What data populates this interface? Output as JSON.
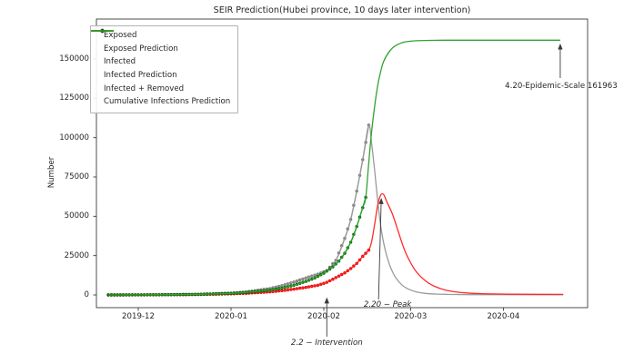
{
  "chart_data": {
    "type": "line",
    "title": "SEIR Prediction(Hubei province, 10 days later intervention)",
    "xlabel": "",
    "ylabel": "Number",
    "background": "#ffffff",
    "grid": false,
    "x_axis": {
      "kind": "date",
      "epoch": "2019-12-01",
      "range_days": [
        -14,
        150
      ],
      "ticks": [
        {
          "label": "2019-12",
          "day": 0
        },
        {
          "label": "2020-01",
          "day": 31
        },
        {
          "label": "2020-02",
          "day": 62
        },
        {
          "label": "2020-03",
          "day": 91
        },
        {
          "label": "2020-04",
          "day": 122
        }
      ]
    },
    "y_axis": {
      "tick_values": [
        0,
        25000,
        50000,
        75000,
        100000,
        125000,
        150000
      ],
      "ylim": [
        -8000,
        175000
      ]
    },
    "legend": {
      "position": "upper left"
    },
    "series": [
      {
        "name": "Exposed",
        "color": "#8a8a8a",
        "marker": true,
        "marker_color": "#757575",
        "points": [
          [
            -10,
            0
          ],
          [
            -5,
            25
          ],
          [
            0,
            60
          ],
          [
            5,
            100
          ],
          [
            10,
            160
          ],
          [
            15,
            260
          ],
          [
            20,
            420
          ],
          [
            25,
            700
          ],
          [
            31,
            1200
          ],
          [
            36,
            1900
          ],
          [
            40,
            3000
          ],
          [
            44,
            4100
          ],
          [
            48,
            5900
          ],
          [
            52,
            8200
          ],
          [
            56,
            10800
          ],
          [
            60,
            13200
          ],
          [
            63,
            15500
          ],
          [
            66,
            22000
          ],
          [
            69,
            36000
          ],
          [
            71,
            48000
          ],
          [
            73,
            66000
          ],
          [
            75,
            86000
          ],
          [
            77,
            108000
          ]
        ]
      },
      {
        "name": "Exposed Prediction",
        "color": "#9a9a9a",
        "marker": false,
        "points": [
          [
            -10,
            0
          ],
          [
            0,
            60
          ],
          [
            10,
            160
          ],
          [
            20,
            420
          ],
          [
            31,
            1200
          ],
          [
            40,
            3000
          ],
          [
            48,
            5900
          ],
          [
            56,
            10800
          ],
          [
            63,
            15500
          ],
          [
            66,
            22000
          ],
          [
            69,
            36000
          ],
          [
            71,
            48000
          ],
          [
            73,
            66000
          ],
          [
            75,
            86000
          ],
          [
            77,
            108000
          ],
          [
            78,
            96000
          ],
          [
            79,
            79000
          ],
          [
            80,
            60000
          ],
          [
            81,
            44000
          ],
          [
            82,
            33000
          ],
          [
            83,
            25000
          ],
          [
            84,
            19000
          ],
          [
            85,
            14500
          ],
          [
            86,
            11000
          ],
          [
            88,
            6500
          ],
          [
            90,
            3900
          ],
          [
            93,
            1900
          ],
          [
            96,
            1000
          ],
          [
            100,
            500
          ],
          [
            106,
            260
          ],
          [
            115,
            160
          ],
          [
            142,
            130
          ]
        ]
      },
      {
        "name": "Infected",
        "color": "#ff1111",
        "marker": true,
        "marker_color": "#e00000",
        "points": [
          [
            -10,
            0
          ],
          [
            -5,
            15
          ],
          [
            0,
            40
          ],
          [
            5,
            70
          ],
          [
            10,
            110
          ],
          [
            15,
            170
          ],
          [
            20,
            260
          ],
          [
            25,
            420
          ],
          [
            31,
            700
          ],
          [
            36,
            1050
          ],
          [
            40,
            1500
          ],
          [
            44,
            1950
          ],
          [
            48,
            2700
          ],
          [
            52,
            3700
          ],
          [
            56,
            4800
          ],
          [
            60,
            6200
          ],
          [
            63,
            8000
          ],
          [
            66,
            11000
          ],
          [
            69,
            14000
          ],
          [
            71,
            16800
          ],
          [
            73,
            20000
          ],
          [
            75,
            24500
          ],
          [
            76,
            26500
          ],
          [
            77,
            28500
          ]
        ]
      },
      {
        "name": "Infected Prediction",
        "color": "#ff2a2a",
        "marker": false,
        "points": [
          [
            -10,
            0
          ],
          [
            0,
            40
          ],
          [
            10,
            110
          ],
          [
            20,
            260
          ],
          [
            31,
            700
          ],
          [
            40,
            1500
          ],
          [
            48,
            2700
          ],
          [
            56,
            4800
          ],
          [
            63,
            8000
          ],
          [
            66,
            11000
          ],
          [
            69,
            14000
          ],
          [
            71,
            16800
          ],
          [
            73,
            20000
          ],
          [
            75,
            24500
          ],
          [
            77,
            28500
          ],
          [
            78,
            34000
          ],
          [
            79,
            45000
          ],
          [
            80,
            57000
          ],
          [
            81,
            63500
          ],
          [
            82,
            63800
          ],
          [
            83,
            59500
          ],
          [
            85,
            51000
          ],
          [
            87,
            39500
          ],
          [
            89,
            28500
          ],
          [
            91,
            20500
          ],
          [
            93,
            14500
          ],
          [
            96,
            8900
          ],
          [
            99,
            5500
          ],
          [
            103,
            2900
          ],
          [
            108,
            1500
          ],
          [
            114,
            850
          ],
          [
            124,
            480
          ],
          [
            142,
            360
          ]
        ]
      },
      {
        "name": "Infected + Removed",
        "color": "#128312",
        "marker": true,
        "marker_color": "#0a5f0a",
        "points": [
          [
            -10,
            0
          ],
          [
            -5,
            30
          ],
          [
            0,
            70
          ],
          [
            5,
            110
          ],
          [
            10,
            170
          ],
          [
            15,
            270
          ],
          [
            20,
            430
          ],
          [
            25,
            680
          ],
          [
            31,
            1000
          ],
          [
            36,
            1600
          ],
          [
            40,
            2300
          ],
          [
            44,
            3100
          ],
          [
            48,
            4300
          ],
          [
            52,
            6200
          ],
          [
            56,
            8600
          ],
          [
            59,
            10800
          ],
          [
            62,
            13800
          ],
          [
            65,
            17800
          ],
          [
            67,
            21500
          ],
          [
            69,
            26500
          ],
          [
            71,
            33500
          ],
          [
            73,
            43500
          ],
          [
            74,
            49500
          ],
          [
            75,
            55500
          ],
          [
            76,
            62000
          ]
        ]
      },
      {
        "name": "Cumulative Infections Prediction",
        "color": "#2fa42f",
        "marker": false,
        "points": [
          [
            -10,
            0
          ],
          [
            0,
            70
          ],
          [
            10,
            170
          ],
          [
            20,
            430
          ],
          [
            31,
            1000
          ],
          [
            40,
            2300
          ],
          [
            48,
            4300
          ],
          [
            56,
            8600
          ],
          [
            62,
            13800
          ],
          [
            67,
            21500
          ],
          [
            71,
            33500
          ],
          [
            73,
            43500
          ],
          [
            75,
            55500
          ],
          [
            76,
            62000
          ],
          [
            77,
            84000
          ],
          [
            78,
            104000
          ],
          [
            79,
            120000
          ],
          [
            80,
            133000
          ],
          [
            81,
            142000
          ],
          [
            82,
            148500
          ],
          [
            84,
            155000
          ],
          [
            86,
            158500
          ],
          [
            89,
            160800
          ],
          [
            93,
            161600
          ],
          [
            100,
            161900
          ],
          [
            110,
            161963
          ],
          [
            141,
            161963
          ]
        ]
      }
    ],
    "annotations": [
      {
        "id": "intervention",
        "label": "2.2 − Intervention",
        "italic": true,
        "day": 63,
        "value": 0
      },
      {
        "id": "peak",
        "label": "2.20 − Peak",
        "italic": true,
        "day": 81.5,
        "value": 63800
      },
      {
        "id": "epidemic-scale",
        "label": "4.20-Epidemic-Scale 161963",
        "italic": false,
        "day": 141,
        "value": 161963
      }
    ]
  }
}
